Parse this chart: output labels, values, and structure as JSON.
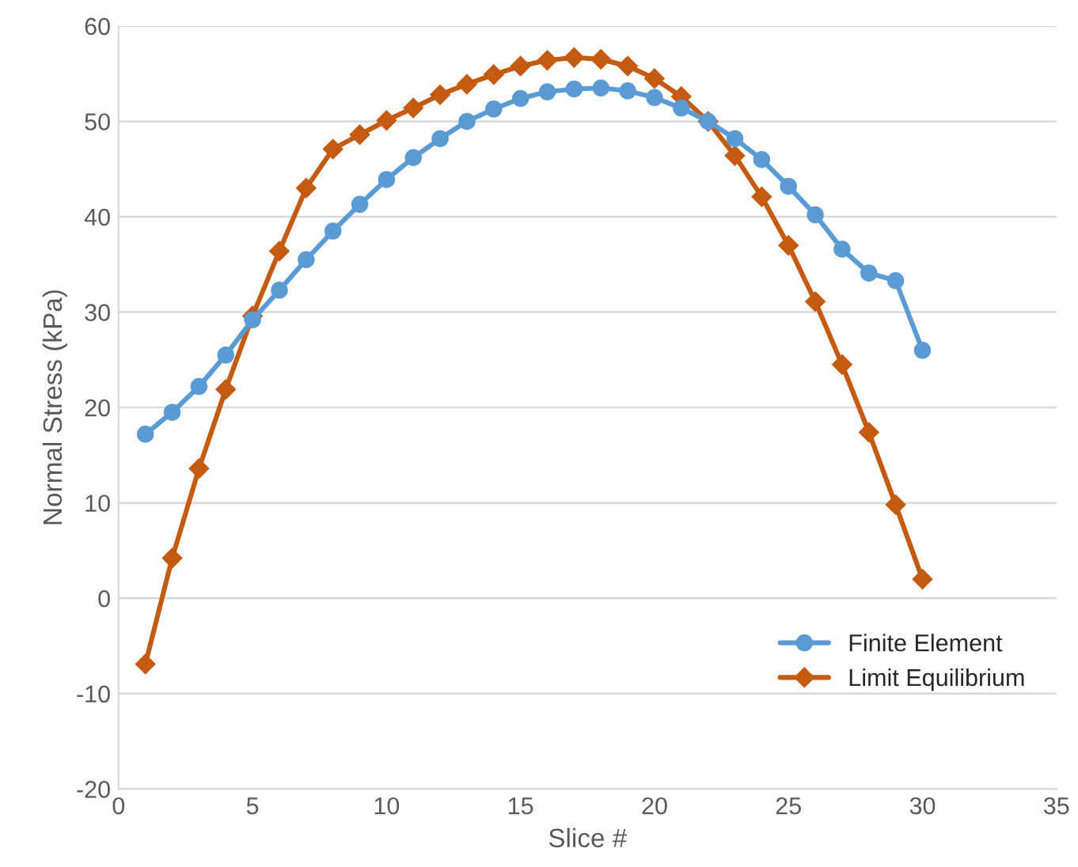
{
  "chart_data": {
    "type": "line",
    "xlabel": "Slice #",
    "ylabel": "Normal Stress (kPa)",
    "x": [
      1,
      2,
      3,
      4,
      5,
      6,
      7,
      8,
      9,
      10,
      11,
      12,
      13,
      14,
      15,
      16,
      17,
      18,
      19,
      20,
      21,
      22,
      23,
      24,
      25,
      26,
      27,
      28,
      29,
      30
    ],
    "series": [
      {
        "name": "Finite Element",
        "color": "#5b9bd5",
        "marker": "circle",
        "values": [
          17.2,
          19.5,
          22.2,
          25.5,
          29.2,
          32.3,
          35.5,
          38.5,
          41.3,
          43.9,
          46.2,
          48.2,
          50.0,
          51.3,
          52.4,
          53.1,
          53.4,
          53.5,
          53.2,
          52.5,
          51.4,
          50.0,
          48.2,
          46.0,
          43.2,
          40.2,
          36.6,
          34.1,
          33.3,
          26.0
        ]
      },
      {
        "name": "Limit Equilibrium",
        "color": "#c55a11",
        "marker": "diamond",
        "values": [
          -6.9,
          4.2,
          13.6,
          21.9,
          29.6,
          36.4,
          43.0,
          47.1,
          48.6,
          50.1,
          51.4,
          52.8,
          53.9,
          54.9,
          55.8,
          56.4,
          56.7,
          56.5,
          55.8,
          54.5,
          52.6,
          50.0,
          46.4,
          42.1,
          37.0,
          31.1,
          24.5,
          17.4,
          9.8,
          2.0
        ]
      }
    ],
    "xlim": [
      0,
      35
    ],
    "xticks": [
      0,
      5,
      10,
      15,
      20,
      25,
      30,
      35
    ],
    "ylim": [
      -20,
      60
    ],
    "yticks": [
      -20,
      -10,
      0,
      10,
      20,
      30,
      40,
      50,
      60
    ],
    "grid": "y",
    "legend": "bottom right",
    "line_style": "solid"
  }
}
